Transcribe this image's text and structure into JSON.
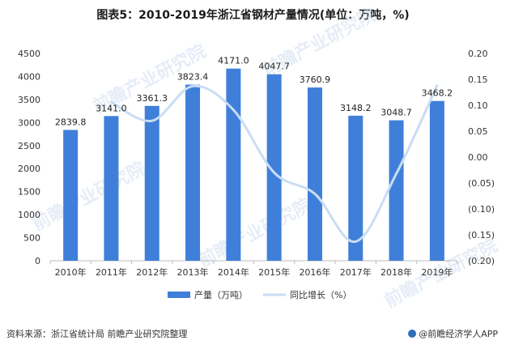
{
  "title": "图表5：2010-2019年浙江省钢材产量情况(单位：万吨，%)",
  "footer": {
    "source": "资料来源：浙江省统计局 前瞻产业研究院整理",
    "brand": "@前瞻经济学人APP"
  },
  "watermark": "前瞻产业研究院",
  "colors": {
    "bar": "#3f7fd9",
    "line": "#c8ddf5",
    "axis": "#bdbdbd",
    "text": "#333333"
  },
  "chart_data": {
    "type": "bar",
    "categories": [
      "2010年",
      "2011年",
      "2012年",
      "2013年",
      "2014年",
      "2015年",
      "2016年",
      "2017年",
      "2018年",
      "2019年"
    ],
    "series": [
      {
        "name": "产量（万吨）",
        "type": "bar",
        "axis": "left",
        "values": [
          2839.8,
          3141.0,
          3361.3,
          3823.4,
          4171.0,
          4047.7,
          3760.9,
          3148.2,
          3048.7,
          3468.2
        ],
        "labels": [
          "2839.8",
          "3141.0",
          "3361.3",
          "3823.4",
          "4171.0",
          "4047.7",
          "3760.9",
          "3148.2",
          "3048.7",
          "3468.2"
        ]
      },
      {
        "name": "同比增长（%）",
        "type": "line",
        "axis": "right",
        "values": [
          null,
          0.106,
          0.07,
          0.137,
          0.091,
          -0.03,
          -0.071,
          -0.163,
          -0.032,
          0.138
        ]
      }
    ],
    "y_left": {
      "min": 0,
      "max": 4500,
      "ticks": [
        "0",
        "500",
        "1000",
        "1500",
        "2000",
        "2500",
        "3000",
        "3500",
        "4000",
        "4500"
      ]
    },
    "y_right": {
      "min": -0.2,
      "max": 0.2,
      "ticks": [
        "0.20",
        "0.15",
        "0.10",
        "0.05",
        "0.00",
        "(0.05)",
        "(0.10)",
        "(0.15)",
        "(0.20)"
      ],
      "tick_values": [
        0.2,
        0.15,
        0.1,
        0.05,
        0.0,
        -0.05,
        -0.1,
        -0.15,
        -0.2
      ]
    },
    "legend_position": "bottom"
  }
}
